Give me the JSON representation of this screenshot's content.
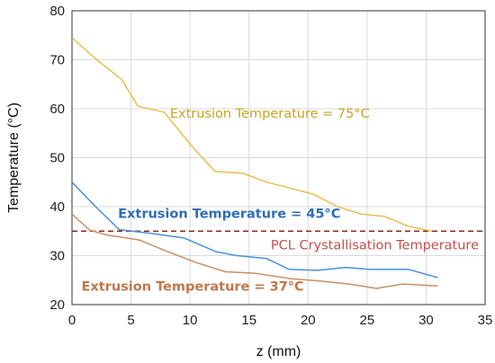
{
  "chart_data": {
    "type": "line",
    "title": "",
    "xlabel": "z (mm)",
    "ylabel": "Temperature (°C)",
    "xlim": [
      0,
      35
    ],
    "ylim": [
      20,
      80
    ],
    "x_ticks": [
      0,
      5,
      10,
      15,
      20,
      25,
      30,
      35
    ],
    "y_ticks": [
      20,
      30,
      40,
      50,
      60,
      70,
      80
    ],
    "x_tick_labels": [
      "0",
      "5",
      "10",
      "15",
      "20",
      "25",
      "30",
      "35"
    ],
    "y_tick_labels": [
      "20",
      "30",
      "40",
      "50",
      "60",
      "70",
      "80"
    ],
    "grid": true,
    "series": [
      {
        "color": "#e6c04a",
        "x": [
          0,
          2.1,
          4.2,
          5.6,
          7.8,
          10.1,
          12.1,
          14.5,
          16.5,
          18.5,
          20.5,
          22.5,
          24.5,
          26.5,
          28.5,
          30.5
        ],
        "y": [
          74.5,
          70,
          66,
          60.5,
          59.3,
          52.5,
          47.2,
          46.8,
          45,
          43.8,
          42.5,
          40,
          38.5,
          38,
          36,
          35
        ]
      },
      {
        "color": "#4a90d9",
        "x": [
          0,
          2,
          4,
          6.5,
          9.5,
          12.2,
          14,
          16.5,
          18.4,
          20.8,
          23.2,
          25.2,
          28.5,
          31
        ],
        "y": [
          45,
          40,
          35.3,
          34.6,
          33.6,
          30.8,
          30,
          29.4,
          27.2,
          27.0,
          27.6,
          27.2,
          27.2,
          25.5
        ]
      },
      {
        "color": "#c79064",
        "x": [
          0,
          1.5,
          3,
          5.7,
          8,
          10.5,
          13,
          15.5,
          18.5,
          21,
          23.5,
          25.8,
          28,
          31
        ],
        "y": [
          38.5,
          35.2,
          34.2,
          33.2,
          30.9,
          28.6,
          26.7,
          26.4,
          25.3,
          24.8,
          24.2,
          23.3,
          24.2,
          23.8
        ]
      }
    ],
    "reference_line": {
      "y": 35,
      "style": "dashed",
      "color": "#8b2a1e",
      "label": "PCL Crystallisation Temperature",
      "label_color": "#c0504d"
    },
    "annotations": [
      {
        "text": "Extrusion Temperature = 75°C",
        "x": 8.3,
        "y": 58.2,
        "color": "#c9a227",
        "weight": "normal"
      },
      {
        "text": "Extrusion Temperature = 45°C",
        "x": 3.9,
        "y": 37.7,
        "color": "#2f6db5",
        "weight": "bold"
      },
      {
        "text": "Extrusion Temperature = 37°C",
        "x": 0.8,
        "y": 22.8,
        "color": "#c0774a",
        "weight": "bold"
      }
    ]
  }
}
